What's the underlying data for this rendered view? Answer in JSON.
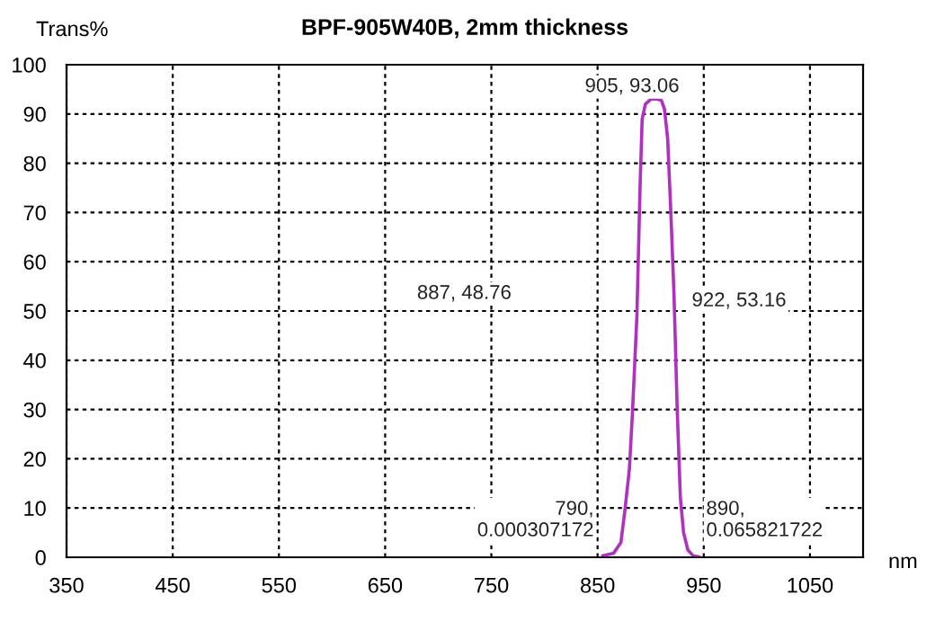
{
  "chart_data": {
    "type": "line",
    "title": "BPF-905W40B, 2mm thickness",
    "xlabel": "nm",
    "ylabel": "Trans%",
    "x": [
      855,
      865,
      872,
      876,
      880,
      883,
      887,
      890,
      892,
      895,
      900,
      905,
      910,
      913,
      916,
      919,
      922,
      925,
      928,
      931,
      935,
      940,
      945
    ],
    "series": [
      {
        "color": "#b030c0",
        "values": [
          0.3,
          0.8,
          3,
          10,
          18,
          30,
          48.76,
          75,
          89,
          92,
          93,
          93.06,
          92.8,
          91,
          85,
          70,
          53.16,
          30,
          12,
          5,
          1.5,
          0.3,
          0.1
        ]
      }
    ],
    "xlim": [
      350,
      1100
    ],
    "xticks": [
      350,
      450,
      550,
      650,
      750,
      850,
      950,
      1050
    ],
    "ylim": [
      0,
      100
    ],
    "yticks": [
      0,
      10,
      20,
      30,
      40,
      50,
      60,
      70,
      80,
      90,
      100
    ],
    "grid": true,
    "legend": false,
    "line_style": "solid",
    "marker": "none",
    "annotations": [
      "905, 93.06",
      "887, 48.76",
      "922, 53.16",
      "790,\n0.000307172",
      "890,\n0.065821722"
    ]
  }
}
